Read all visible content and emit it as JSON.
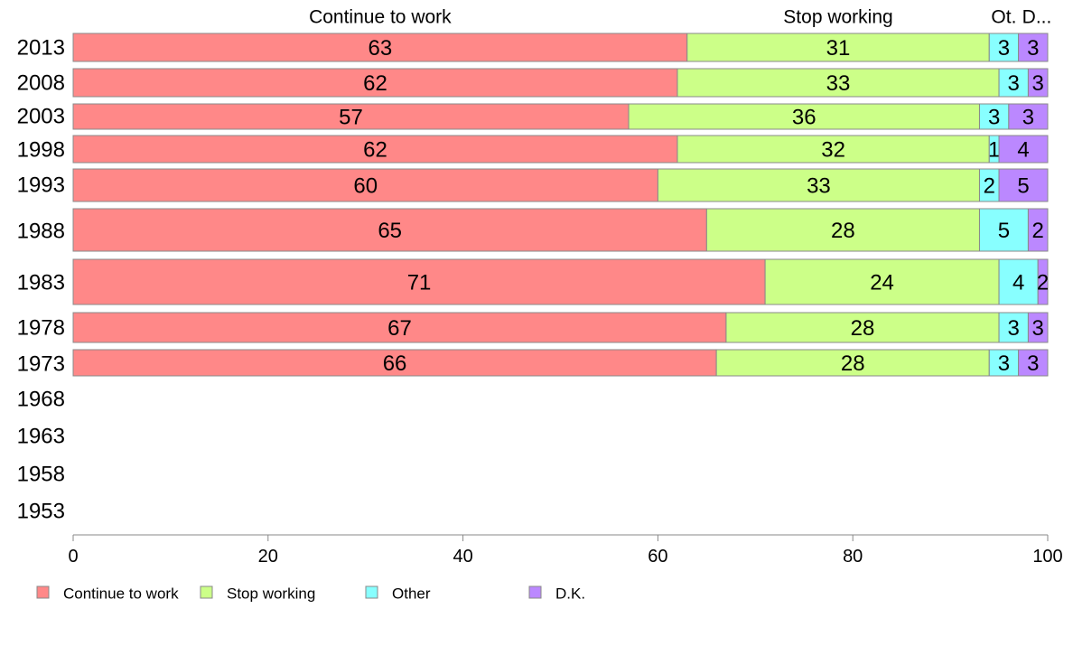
{
  "chart_data": {
    "type": "bar",
    "orientation": "horizontal",
    "stacked": true,
    "categories": [
      "2013",
      "2008",
      "2003",
      "1998",
      "1993",
      "1988",
      "1983",
      "1978",
      "1973",
      "1968",
      "1963",
      "1958",
      "1953"
    ],
    "series": [
      {
        "name": "Continue to work",
        "header": "Continue to work",
        "color": "#ff8888",
        "values": [
          63,
          62,
          57,
          62,
          60,
          65,
          71,
          67,
          66,
          null,
          null,
          null,
          null
        ]
      },
      {
        "name": "Stop working",
        "header": "Stop working",
        "color": "#ccff88",
        "values": [
          31,
          33,
          36,
          32,
          33,
          28,
          24,
          28,
          28,
          null,
          null,
          null,
          null
        ]
      },
      {
        "name": "Other",
        "header": "Ot.",
        "color": "#88ffff",
        "values": [
          3,
          3,
          3,
          1,
          2,
          5,
          4,
          3,
          3,
          null,
          null,
          null,
          null
        ]
      },
      {
        "name": "D.K.",
        "header": "D...",
        "color": "#bb88ff",
        "values": [
          3,
          3,
          3,
          4,
          5,
          2,
          2,
          3,
          3,
          null,
          null,
          null,
          null
        ]
      }
    ],
    "xlim": [
      0,
      100
    ],
    "xticks": [
      0,
      20,
      40,
      60,
      80,
      100
    ],
    "legend_position": "bottom-left",
    "grid": false
  }
}
